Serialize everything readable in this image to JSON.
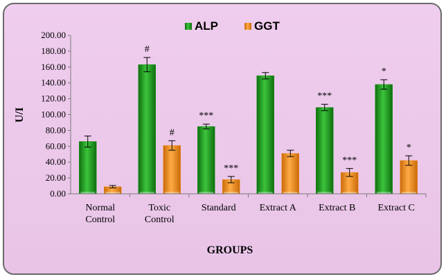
{
  "chart_data": {
    "type": "bar",
    "xlabel": "GROUPS",
    "ylabel": "U/I",
    "ylim": [
      0,
      200
    ],
    "yticks": [
      "0.00",
      "20.00",
      "40.00",
      "60.00",
      "80.00",
      "100.00",
      "120.00",
      "140.00",
      "160.00",
      "180.00",
      "200.00"
    ],
    "grid": false,
    "legend_position": "top-center",
    "categories": [
      [
        "Normal",
        "Control"
      ],
      [
        "Toxic",
        "Control"
      ],
      [
        "Standard"
      ],
      [
        "Extract A"
      ],
      [
        "Extract B"
      ],
      [
        "Extract C"
      ]
    ],
    "series": [
      {
        "name": "ALP",
        "color": "#1e9a1e",
        "values": [
          66,
          163,
          85,
          149,
          109,
          138
        ],
        "errors": [
          7,
          9,
          3,
          4,
          4,
          6
        ],
        "significance": [
          "",
          "#",
          "***",
          "",
          "***",
          "*"
        ]
      },
      {
        "name": "GGT",
        "color": "#f08c1a",
        "values": [
          9,
          61,
          18,
          51,
          27,
          42
        ],
        "errors": [
          1.5,
          6,
          4,
          4,
          5,
          6
        ],
        "significance": [
          "",
          "#",
          "***",
          "",
          "***",
          "*"
        ]
      }
    ]
  }
}
